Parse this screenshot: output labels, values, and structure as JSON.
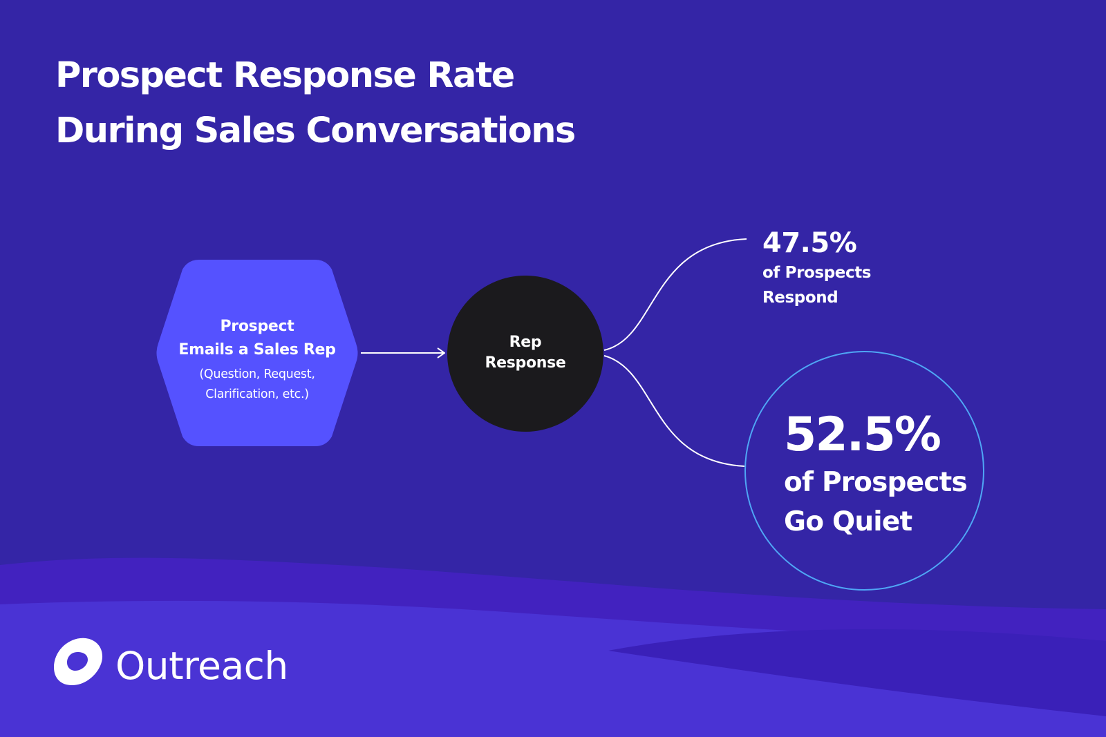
{
  "title": {
    "line1": "Prospect Response Rate",
    "line2": "During Sales Conversations"
  },
  "diagram": {
    "start_node": {
      "shape": "hexagon",
      "title_line1": "Prospect",
      "title_line2": "Emails a Sales Rep",
      "subtitle_line1": "(Question, Request,",
      "subtitle_line2": "Clarification, etc.)"
    },
    "middle_node": {
      "shape": "circle",
      "line1": "Rep",
      "line2": "Response"
    },
    "outcomes": [
      {
        "value": "47.5%",
        "label_line1": "of Prospects",
        "label_line2": "Respond"
      },
      {
        "value": "52.5%",
        "label_line1": "of Prospects",
        "label_line2": "Go Quiet"
      }
    ],
    "edges": [
      {
        "from": "start_node",
        "to": "middle_node",
        "arrow": true
      },
      {
        "from": "middle_node",
        "to": "outcomes.0",
        "arrow": false
      },
      {
        "from": "middle_node",
        "to": "outcomes.1",
        "arrow": false
      }
    ]
  },
  "brand": {
    "name": "Outreach",
    "logo_icon": "outreach-logo-icon"
  },
  "colors": {
    "background": "#3425a6",
    "wave_light": "#4a33d4",
    "wave_dark": "#3a20b8",
    "hexagon": "#5552ff",
    "rep_circle": "#1b1a1d",
    "quiet_circle_border": "#4fa6f5",
    "text": "#ffffff"
  }
}
